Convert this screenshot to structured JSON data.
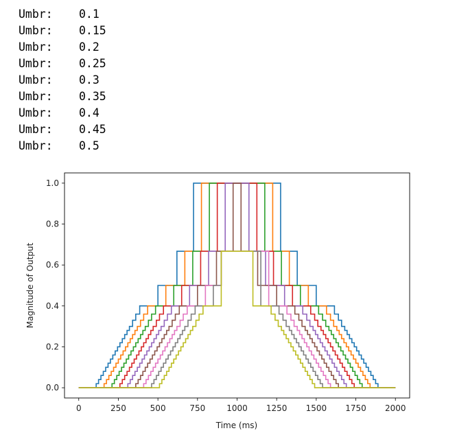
{
  "output": {
    "lines": [
      {
        "label": "Umbr:",
        "value": "0.1"
      },
      {
        "label": "Umbr:",
        "value": "0.15"
      },
      {
        "label": "Umbr:",
        "value": "0.2"
      },
      {
        "label": "Umbr:",
        "value": "0.25"
      },
      {
        "label": "Umbr:",
        "value": "0.3"
      },
      {
        "label": "Umbr:",
        "value": "0.35"
      },
      {
        "label": "Umbr:",
        "value": "0.4"
      },
      {
        "label": "Umbr:",
        "value": "0.45"
      },
      {
        "label": "Umbr:",
        "value": "0.5"
      }
    ]
  },
  "chart_data": {
    "type": "line",
    "title": "",
    "xlabel": "Time (ms)",
    "ylabel": "Magnitude of Output",
    "xlim": [
      -90,
      2090
    ],
    "ylim": [
      -0.05,
      1.05
    ],
    "xticks": [
      0,
      250,
      500,
      750,
      1000,
      1250,
      1500,
      1750,
      2000
    ],
    "yticks": [
      0.0,
      0.2,
      0.4,
      0.6,
      0.8,
      1.0
    ],
    "xtick_labels": [
      "0",
      "250",
      "500",
      "750",
      "1000",
      "1250",
      "1500",
      "1750",
      "2000"
    ],
    "ytick_labels": [
      "0.0",
      "0.2",
      "0.4",
      "0.6",
      "0.8",
      "1.0"
    ],
    "grid": false,
    "legend": "none",
    "series": [
      {
        "color": "#1f77b4",
        "umbr": 0.1,
        "ramp_start": 95,
        "top_start": 725,
        "top_end": 1275,
        "ramp_end": 1905,
        "x_end": 2000
      },
      {
        "color": "#ff7f0e",
        "umbr": 0.15,
        "ramp_start": 145,
        "top_start": 775,
        "top_end": 1225,
        "ramp_end": 1855,
        "x_end": 2000
      },
      {
        "color": "#2ca02c",
        "umbr": 0.2,
        "ramp_start": 195,
        "top_start": 825,
        "top_end": 1175,
        "ramp_end": 1805,
        "x_end": 2000
      },
      {
        "color": "#d62728",
        "umbr": 0.25,
        "ramp_start": 245,
        "top_start": 875,
        "top_end": 1125,
        "ramp_end": 1755,
        "x_end": 2000
      },
      {
        "color": "#9467bd",
        "umbr": 0.3,
        "ramp_start": 295,
        "top_start": 925,
        "top_end": 1075,
        "ramp_end": 1705,
        "x_end": 2000
      },
      {
        "color": "#8c564b",
        "umbr": 0.35,
        "ramp_start": 345,
        "top_start": 975,
        "top_end": 1025,
        "ramp_end": 1655,
        "x_end": 2000
      },
      {
        "color": "#e377c2",
        "umbr": 0.4,
        "ramp_start": 395,
        "top_start": 1000,
        "top_end": 1000,
        "ramp_end": 1605,
        "x_end": 2000
      },
      {
        "color": "#7f7f7f",
        "umbr": 0.45,
        "ramp_start": 445,
        "top_start": 1000,
        "top_end": 1000,
        "ramp_end": 1555,
        "x_end": 2000
      },
      {
        "color": "#bcbd22",
        "umbr": 0.5,
        "ramp_start": 495,
        "top_start": 1000,
        "top_end": 1000,
        "ramp_end": 1505,
        "x_end": 2000
      }
    ],
    "levels": [
      0,
      0.02,
      0.04,
      0.06,
      0.08,
      0.1,
      0.12,
      0.14,
      0.16,
      0.18,
      0.2,
      0.22,
      0.24,
      0.26,
      0.28,
      0.3,
      0.33,
      0.36,
      0.4,
      0.5,
      0.667,
      1.0
    ],
    "level_steps_ms": [
      0,
      15,
      30,
      45,
      60,
      75,
      90,
      105,
      120,
      135,
      150,
      165,
      180,
      195,
      210,
      225,
      245,
      265,
      290,
      405,
      525,
      630
    ]
  }
}
